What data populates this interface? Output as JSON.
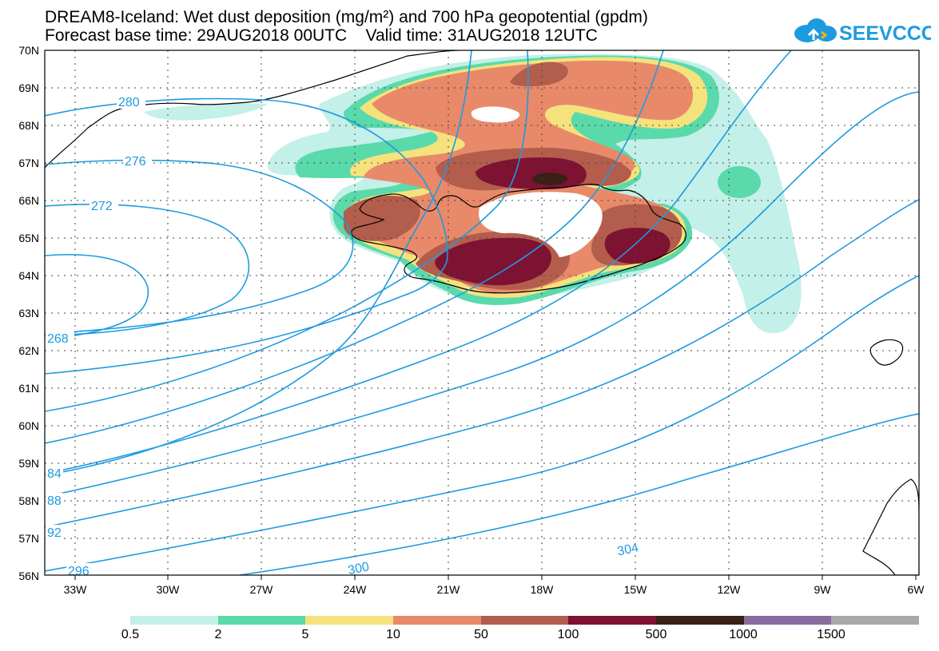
{
  "header": {
    "title_line1": "DREAM8-Iceland: Wet dust deposition (mg/m²) and 700 hPa geopotential (gpdm)",
    "title_line2": "Forecast base time: 29AUG2018 00UTC    Valid time: 31AUG2018 12UTC"
  },
  "logo": {
    "text": "SEEVCCC",
    "color": "#1e9be0"
  },
  "axes": {
    "lat_labels": [
      "70N",
      "69N",
      "68N",
      "67N",
      "66N",
      "65N",
      "64N",
      "63N",
      "62N",
      "61N",
      "60N",
      "59N",
      "58N",
      "57N",
      "56N"
    ],
    "lon_labels": [
      "33W",
      "30W",
      "27W",
      "24W",
      "21W",
      "18W",
      "15W",
      "12W",
      "9W",
      "6W"
    ]
  },
  "contours": {
    "color": "#1e9be0",
    "labels": [
      "280",
      "276",
      "272",
      "268",
      "84",
      "88",
      "92",
      "296",
      "300",
      "304"
    ]
  },
  "colorbar": {
    "colors": [
      "#c3f0e8",
      "#5ad9ab",
      "#f5e27d",
      "#e8896a",
      "#b35d4c",
      "#7e1233",
      "#3a2116",
      "#8a6d9f",
      "#a9a9a9"
    ],
    "labels": [
      "0.5",
      "2",
      "5",
      "10",
      "50",
      "100",
      "500",
      "1000",
      "1500"
    ]
  },
  "shading_colors": {
    "c05": "#c3f0e8",
    "c2": "#5ad9ab",
    "c5": "#f5e27d",
    "c10": "#e8896a",
    "c50": "#b35d4c",
    "c100": "#7e1233",
    "c500": "#3a2116"
  }
}
